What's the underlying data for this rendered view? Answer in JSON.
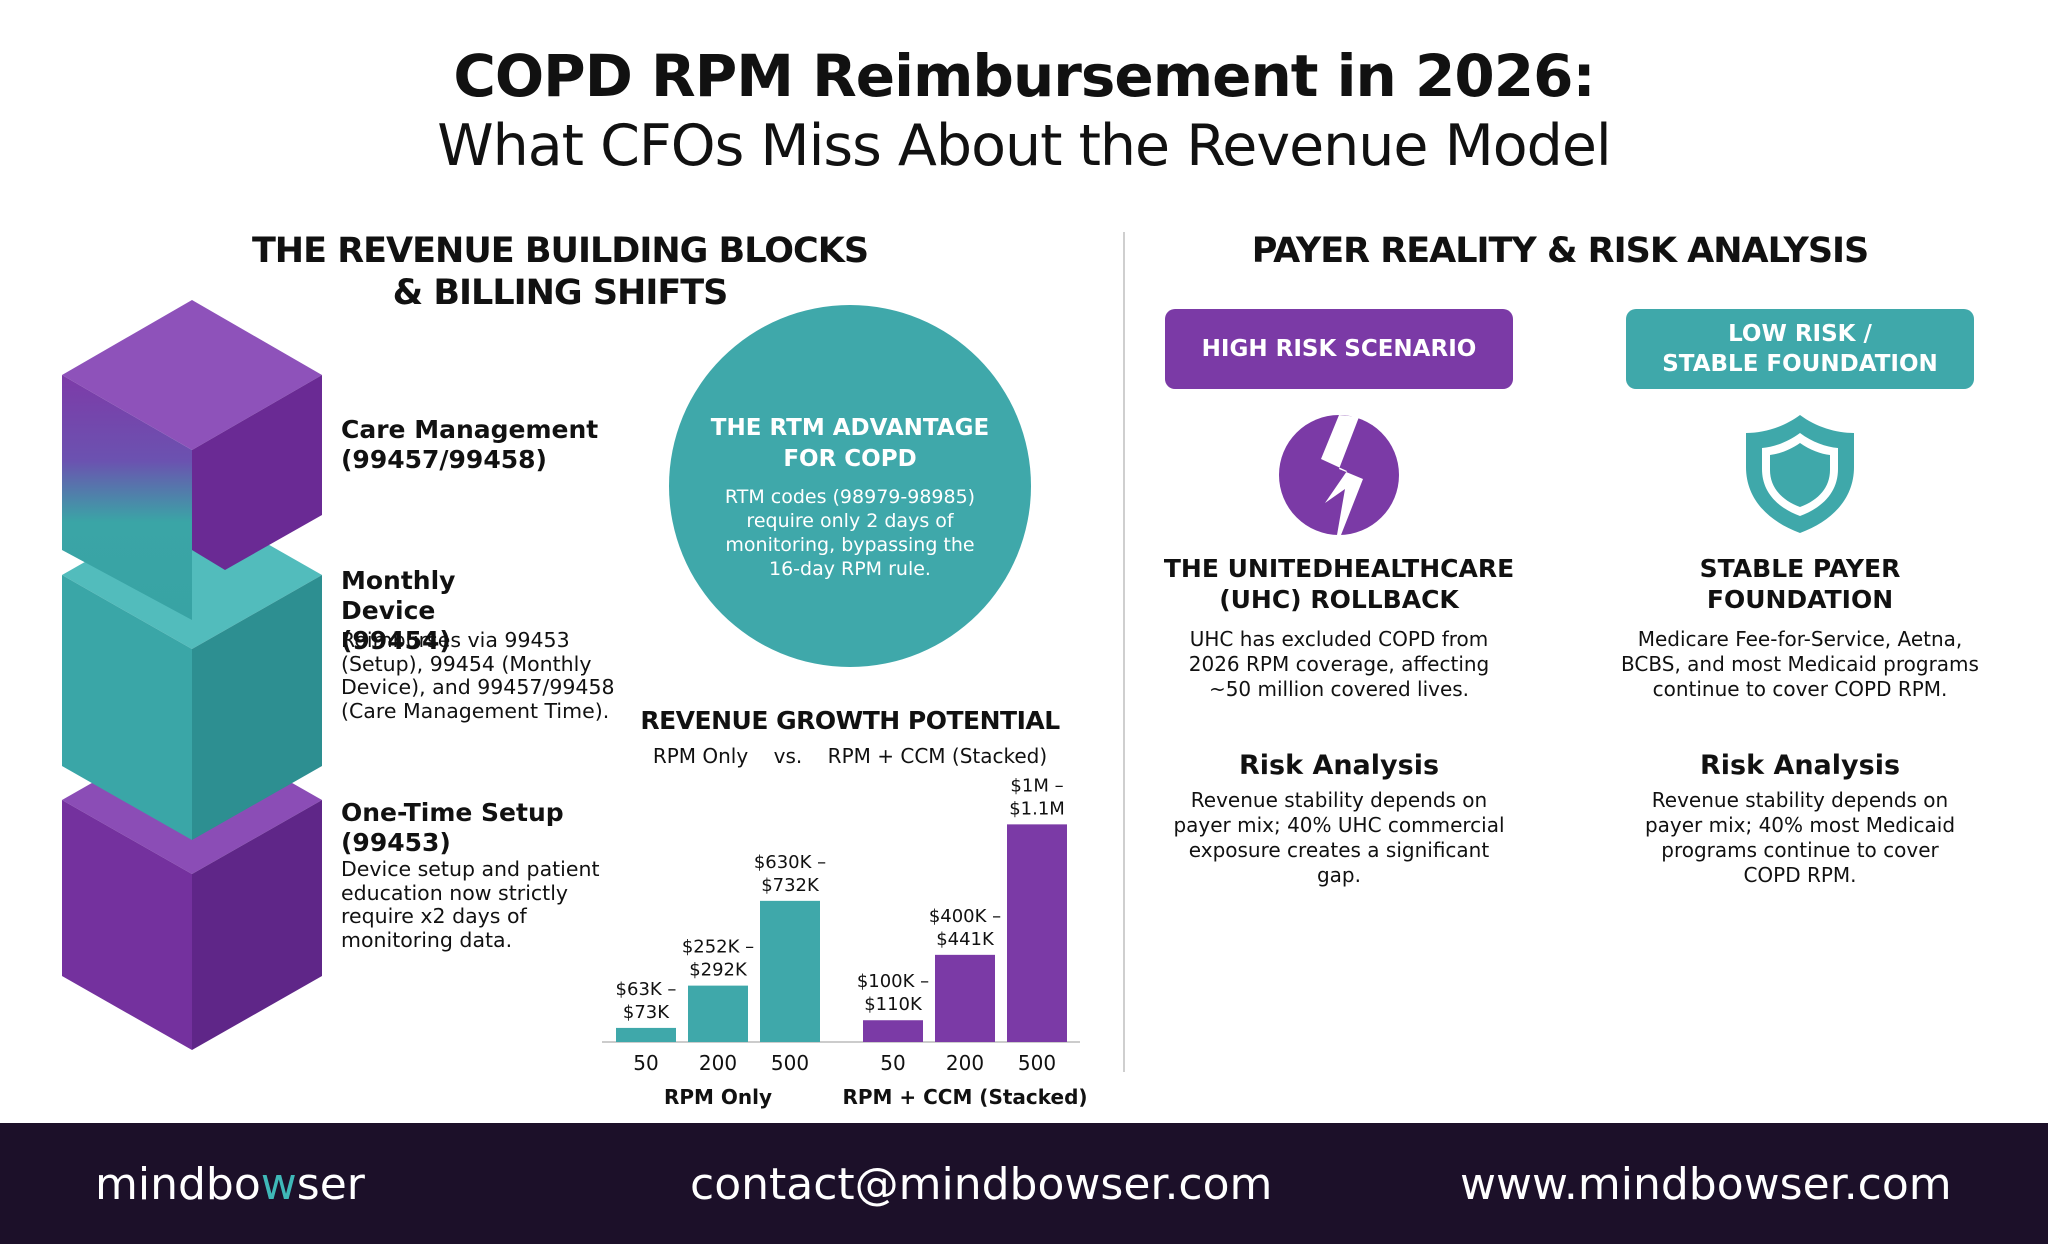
{
  "title_line1": "COPD RPM Reimbursement in 2026:",
  "title_line2": "What CFOs Miss About the Revenue Model",
  "left_section": {
    "title_line1": "THE REVENUE BUILDING BLOCKS",
    "title_line2": "& BILLING SHIFTS",
    "blocks": [
      {
        "label": "Care Management (99457/99458)",
        "desc": ""
      },
      {
        "label": "Monthly Device (99454)",
        "desc": "Reimburses via 99453 (Setup), 99454 (Monthly Device), and 99457/99458 (Care Management Time)."
      },
      {
        "label": "One-Time Setup (99453)",
        "desc": "Device setup and patient education now strictly require x2 days of monitoring data."
      }
    ]
  },
  "rtm": {
    "title": "THE RTM ADVANTAGE FOR COPD",
    "body": "RTM codes (98979-98985) require only 2 days of monitoring, bypassing the 16-day RPM rule."
  },
  "colors": {
    "purple": "#7b3aa6",
    "teal": "#3fa8aa",
    "footer": "#1c1029"
  },
  "chart_data": {
    "type": "bar",
    "title": "REVENUE GROWTH POTENTIAL",
    "subtitle": "RPM Only    vs.    RPM + CCM (Stacked)",
    "xlabel": "",
    "ylabel": "",
    "groups": [
      {
        "name": "RPM Only",
        "color": "#3fa8aa",
        "categories": [
          "50",
          "200",
          "500"
        ],
        "values": [
          68000,
          272000,
          681000
        ],
        "labels": [
          "$63K –\n$73K",
          "$252K –\n$292K",
          "$630K –\n$732K"
        ]
      },
      {
        "name": "RPM + CCM (Stacked)",
        "color": "#7b3aa6",
        "categories": [
          "50",
          "200",
          "500"
        ],
        "values": [
          105000,
          420500,
          1050000
        ],
        "labels": [
          "$100K –\n$110K",
          "$400K –\n$441K",
          "$1M –\n$1.1M"
        ]
      }
    ],
    "ylim": [
      0,
      1100000
    ],
    "grid": false
  },
  "right_section": {
    "title": "PAYER REALITY & RISK ANALYSIS",
    "high": {
      "pill": "HIGH RISK SCENARIO",
      "icon": "broken-heart-icon",
      "heading": "THE UNITEDHEALTHCARE (UHC) ROLLBACK",
      "body": "UHC has excluded COPD from 2026 RPM coverage, affecting ~50 million covered lives.",
      "risk_title": "Risk Analysis",
      "risk_body": "Revenue stability depends on payer mix; 40% UHC commercial exposure creates a significant gap."
    },
    "low": {
      "pill_line1": "LOW RISK /",
      "pill_line2": "STABLE FOUNDATION",
      "icon": "shield-icon",
      "heading": "STABLE PAYER FOUNDATION",
      "body": "Medicare Fee-for-Service, Aetna, BCBS, and most Medicaid programs continue to cover COPD RPM.",
      "risk_title": "Risk Analysis",
      "risk_body": "Revenue stability depends on payer mix; 40% most Medicaid programs continue to cover COPD RPM."
    }
  },
  "footer": {
    "brand_a": "mindbo",
    "brand_w": "w",
    "brand_b": "ser",
    "email": "contact@mindbowser.com",
    "website": "www.mindbowser.com"
  }
}
